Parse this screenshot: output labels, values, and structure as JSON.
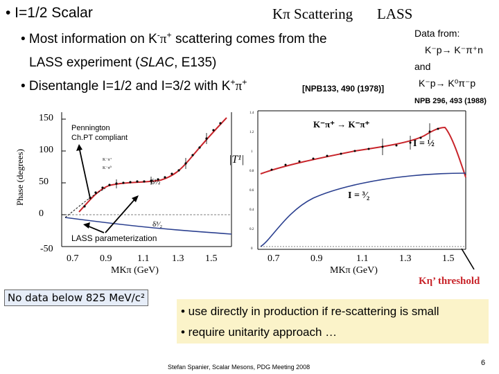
{
  "slide": {
    "title_left": "• I=1/2 Scalar",
    "title_center_k": "Kπ",
    "title_center_rest": "Scattering",
    "title_right": "LASS",
    "bullets": [
      {
        "pre": "• Most information on K",
        "sup1": "-",
        "mid": "π",
        "sup2": "+",
        "post": " scattering comes from the"
      },
      {
        "text": "LASS experiment (",
        "italic": "SLAC",
        "post": ", E135)"
      },
      {
        "pre": "• Disentangle I=1/2 and I=3/2 with K",
        "sup1": "+",
        "mid": "π",
        "sup2": "+"
      }
    ],
    "npb_ref": "[NPB133, 490 (1978)]",
    "data_from": {
      "heading": "Data from:",
      "line1": "K⁻p→ K⁻π⁺n",
      "line2": "and",
      "line3": "K⁻p→ K⁰π⁻p",
      "ref": "NPB 296, 493 (1988)"
    },
    "left_plot": {
      "ylabel": "Phase (degrees)",
      "yticks": [
        "150",
        "100",
        "50",
        "0",
        "-50"
      ],
      "xticks": [
        "0.7",
        "0.9",
        "1.1",
        "1.3",
        "1.5"
      ],
      "xlabel": "MKπ (GeV)",
      "annotation": "Pennington\nCh.PT compliant",
      "lass_label": "LASS parameterization",
      "delta_half": "δ½",
      "delta_3half": "δ³⁄₂"
    },
    "right_plot": {
      "ylabel": "|T¹|",
      "xticks": [
        "0.7",
        "0.9",
        "1.1",
        "1.3",
        "1.5"
      ],
      "xlabel": "MKπ (GeV)",
      "label_i_half": "I = ½",
      "label_i_3half": "I = ³⁄₂",
      "legend": "K⁻π⁺ → K⁻π⁺",
      "threshold": "Kη’ threshold"
    },
    "no_data_note": "No data below 825 MeV/c²",
    "conclusions": [
      "• use directly in production if re-scattering is small",
      "• require unitarity approach …"
    ],
    "footer": "Stefan Spanier,  Scalar Mesons, PDG Meeting 2008",
    "page_number": "6",
    "colors": {
      "red": "#c8242a",
      "blue": "#2a3f8f",
      "arrow": "#000000"
    }
  }
}
